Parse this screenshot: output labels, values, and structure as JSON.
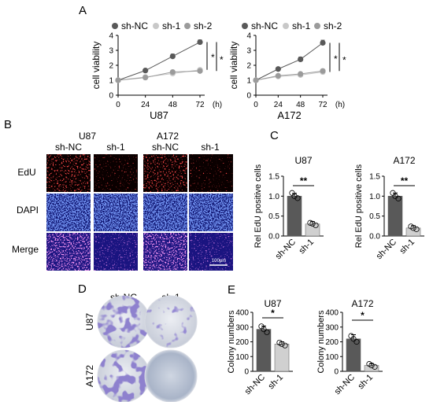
{
  "panels": {
    "A": "A",
    "B": "B",
    "C": "C",
    "D": "D",
    "E": "E"
  },
  "colors": {
    "sh_nc": "#595959",
    "sh_1": "#c8c8c8",
    "sh_2": "#9b9b9b",
    "axis": "#000000",
    "edu_red": "#e01818",
    "dapi_blue": "#1c3adf",
    "merge_magenta": "#b72fd0",
    "crystal_violet": "#5a4fb0"
  },
  "panel_b": {
    "cell_lines": [
      "U87",
      "A172"
    ],
    "groups": [
      "sh-NC",
      "sh-1",
      "sh-NC",
      "sh-1"
    ],
    "rows": [
      "EdU",
      "DAPI",
      "Merge"
    ],
    "scale_bar": "100μm"
  },
  "panel_d": {
    "groups": [
      "sh-NC",
      "sh-1"
    ],
    "rows": [
      "U87",
      "A172"
    ]
  },
  "chart_data": [
    {
      "type": "line",
      "panel": "A",
      "title": "",
      "xlabel": "U87",
      "ylabel": "cell viability",
      "x_unit": "(h)",
      "x": [
        0,
        24,
        48,
        72
      ],
      "ylim": [
        0,
        4
      ],
      "yticks": [
        0,
        1,
        2,
        3,
        4
      ],
      "legend": "top",
      "series": [
        {
          "name": "sh-NC",
          "color": "#595959",
          "values": [
            1.0,
            1.65,
            2.6,
            3.55
          ],
          "err": [
            0.05,
            0.12,
            0.15,
            0.15
          ]
        },
        {
          "name": "sh-1",
          "color": "#c8c8c8",
          "values": [
            1.0,
            1.22,
            1.45,
            1.7
          ],
          "err": [
            0.04,
            0.06,
            0.08,
            0.08
          ]
        },
        {
          "name": "sh-2",
          "color": "#9b9b9b",
          "values": [
            1.0,
            1.18,
            1.55,
            1.62
          ],
          "err": [
            0.04,
            0.06,
            0.08,
            0.08
          ]
        }
      ],
      "significance": [
        "*",
        "*"
      ]
    },
    {
      "type": "line",
      "panel": "A",
      "title": "",
      "xlabel": "A172",
      "ylabel": "cell viability",
      "x_unit": "(h)",
      "x": [
        0,
        24,
        48,
        72
      ],
      "ylim": [
        0,
        4
      ],
      "yticks": [
        0,
        1,
        2,
        3,
        4
      ],
      "legend": "top",
      "series": [
        {
          "name": "sh-NC",
          "color": "#595959",
          "values": [
            1.0,
            1.75,
            2.4,
            3.5
          ],
          "err": [
            0.05,
            0.12,
            0.15,
            0.18
          ]
        },
        {
          "name": "sh-1",
          "color": "#c8c8c8",
          "values": [
            1.0,
            1.25,
            1.35,
            1.55
          ],
          "err": [
            0.04,
            0.06,
            0.08,
            0.08
          ]
        },
        {
          "name": "sh-2",
          "color": "#9b9b9b",
          "values": [
            1.0,
            1.3,
            1.42,
            1.62
          ],
          "err": [
            0.04,
            0.06,
            0.08,
            0.08
          ]
        }
      ],
      "significance": [
        "*",
        "*"
      ]
    },
    {
      "type": "bar",
      "panel": "C",
      "title": "U87",
      "ylabel": "Rel EdU positive cells",
      "categories": [
        "sh-NC",
        "sh-1"
      ],
      "values": [
        1.0,
        0.3
      ],
      "err": [
        0.07,
        0.06
      ],
      "points": [
        [
          1.08,
          0.95,
          1.0
        ],
        [
          0.33,
          0.27,
          0.31
        ]
      ],
      "bar_colors": [
        "#595959",
        "#d0d0d0"
      ],
      "ylim": [
        0,
        1.5
      ],
      "yticks": [
        0.0,
        0.5,
        1.0,
        1.5
      ],
      "yticklabels": [
        "0.0",
        "0.5",
        "1.0",
        "1.5"
      ],
      "significance": "**"
    },
    {
      "type": "bar",
      "panel": "C",
      "title": "A172",
      "ylabel": "Rel EdU positive cells",
      "categories": [
        "sh-NC",
        "sh-1"
      ],
      "values": [
        1.0,
        0.2
      ],
      "err": [
        0.08,
        0.06
      ],
      "points": [
        [
          1.08,
          0.94,
          1.0
        ],
        [
          0.24,
          0.17,
          0.2
        ]
      ],
      "bar_colors": [
        "#595959",
        "#d0d0d0"
      ],
      "ylim": [
        0,
        1.5
      ],
      "yticks": [
        0.0,
        0.5,
        1.0,
        1.5
      ],
      "yticklabels": [
        "0.0",
        "0.5",
        "1.0",
        "1.5"
      ],
      "significance": "**"
    },
    {
      "type": "bar",
      "panel": "E",
      "title": "U87",
      "ylabel": "Colony numbers",
      "categories": [
        "sh-NC",
        "sh-1"
      ],
      "values": [
        285,
        185
      ],
      "err": [
        22,
        15
      ],
      "points": [
        [
          305,
          265,
          285
        ],
        [
          195,
          175,
          185
        ]
      ],
      "bar_colors": [
        "#595959",
        "#d0d0d0"
      ],
      "ylim": [
        0,
        400
      ],
      "yticks": [
        0,
        100,
        200,
        300,
        400
      ],
      "yticklabels": [
        "0",
        "100",
        "200",
        "300",
        "400"
      ],
      "significance": "*"
    },
    {
      "type": "bar",
      "panel": "E",
      "title": "A172",
      "ylabel": "Colony numbers",
      "categories": [
        "sh-NC",
        "sh-1"
      ],
      "values": [
        220,
        40
      ],
      "err": [
        28,
        12
      ],
      "points": [
        [
          240,
          200,
          220
        ],
        [
          50,
          30,
          40
        ]
      ],
      "bar_colors": [
        "#595959",
        "#d0d0d0"
      ],
      "ylim": [
        0,
        400
      ],
      "yticks": [
        0,
        100,
        200,
        300,
        400
      ],
      "yticklabels": [
        "0",
        "100",
        "200",
        "300",
        "400"
      ],
      "significance": "*"
    }
  ]
}
